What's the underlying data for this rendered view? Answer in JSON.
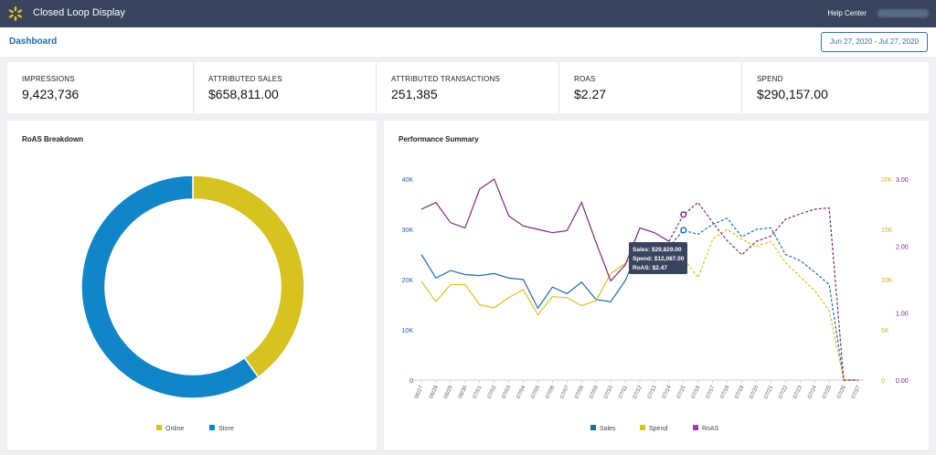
{
  "header": {
    "app_title": "Closed Loop Display",
    "help_link": "Help Center",
    "brand_color": "#37455e",
    "logo_icon": "spark-icon"
  },
  "subheader": {
    "page": "Dashboard",
    "date_range": "Jun 27, 2020 - Jul 27, 2020"
  },
  "kpis": [
    {
      "label": "IMPRESSIONS",
      "value": "9,423,736"
    },
    {
      "label": "ATTRIBUTED SALES",
      "value": "$658,811.00"
    },
    {
      "label": "ATTRIBUTED TRANSACTIONS",
      "value": "251,385"
    },
    {
      "label": "ROAS",
      "value": "$2.27"
    },
    {
      "label": "SPEND",
      "value": "$290,157.00"
    }
  ],
  "roas_panel": {
    "title": "RoAS Breakdown"
  },
  "performance_panel": {
    "title": "Performance Summary"
  },
  "tooltip": {
    "sales": "Sales: $29,829.00",
    "spend": "Spend: $12,087.00",
    "roas": "RoAS: $2.47"
  },
  "chart_data": [
    {
      "type": "pie",
      "style": "donut",
      "categories": [
        "Online",
        "Store"
      ],
      "values": [
        40,
        60
      ],
      "colors": [
        "#d7c21e",
        "#1085c9"
      ],
      "legend_position": "bottom"
    },
    {
      "type": "line",
      "x": [
        "06/27",
        "06/28",
        "06/29",
        "06/30",
        "07/01",
        "07/02",
        "07/03",
        "07/04",
        "07/05",
        "07/06",
        "07/07",
        "07/08",
        "07/09",
        "07/10",
        "07/11",
        "07/12",
        "07/13",
        "07/14",
        "07/15",
        "07/16",
        "07/17",
        "07/18",
        "07/19",
        "07/20",
        "07/21",
        "07/22",
        "07/23",
        "07/24",
        "07/25",
        "07/26",
        "07/27"
      ],
      "solid_through": "07/14",
      "highlight_x": "07/15",
      "y_left": {
        "ticks": [
          "0",
          "10K",
          "20K",
          "30K",
          "40K"
        ],
        "range": [
          0,
          40000
        ],
        "color": "#1f5fa8"
      },
      "y_right_spend": {
        "ticks": [
          "0",
          "5K",
          "10K",
          "15K",
          "20K"
        ],
        "range": [
          0,
          20000
        ],
        "color": "#c9b324"
      },
      "y_right_roas": {
        "ticks": [
          "0.00",
          "1.00",
          "2.00",
          "3.00"
        ],
        "range": [
          0,
          3
        ],
        "color": "#6a2a7a"
      },
      "legend_position": "bottom",
      "grid": false,
      "series": [
        {
          "name": "Sales",
          "axis": "left",
          "color": "#1c6ea4",
          "values": [
            25000,
            20300,
            21800,
            21000,
            20800,
            21200,
            20300,
            20000,
            14300,
            18500,
            17200,
            19500,
            16000,
            15600,
            19800,
            26500,
            25800,
            26500,
            29829,
            29000,
            31000,
            32200,
            28500,
            30000,
            30300,
            25000,
            23800,
            21500,
            19000,
            0,
            0
          ]
        },
        {
          "name": "Spend",
          "axis": "spend",
          "color": "#d7c21e",
          "values": [
            9800,
            7800,
            9500,
            9500,
            7500,
            7200,
            8200,
            9000,
            6500,
            8300,
            8200,
            7400,
            7900,
            10600,
            11600,
            12800,
            12800,
            12800,
            12087,
            10200,
            14000,
            15000,
            14000,
            13300,
            13800,
            11700,
            10300,
            8900,
            6900,
            0,
            0
          ]
        },
        {
          "name": "RoAS",
          "axis": "roas",
          "color": "#7b2b74",
          "values": [
            2.55,
            2.65,
            2.35,
            2.27,
            2.85,
            3.0,
            2.45,
            2.3,
            2.25,
            2.2,
            2.23,
            2.65,
            2.05,
            1.48,
            1.72,
            2.27,
            2.2,
            2.07,
            2.47,
            2.65,
            2.35,
            2.08,
            1.87,
            2.07,
            2.15,
            2.4,
            2.48,
            2.55,
            2.57,
            0,
            0
          ]
        }
      ]
    }
  ]
}
